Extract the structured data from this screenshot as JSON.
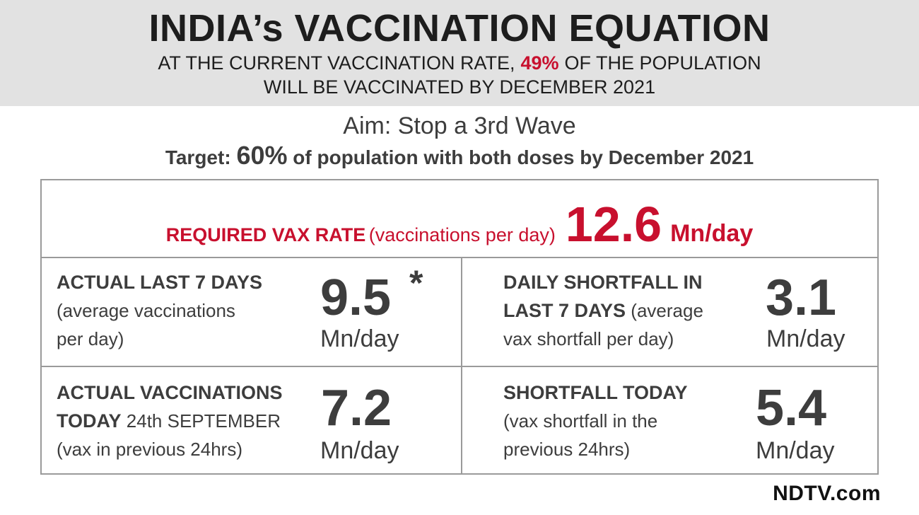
{
  "header": {
    "title": "INDIA’s VACCINATION EQUATION",
    "line1_before": "AT THE CURRENT VACCINATION RATE,",
    "line1_pct": "49%",
    "line1_after": "OF THE POPULATION",
    "line2": "WILL BE VACCINATED BY DECEMBER 2021"
  },
  "aim": "Aim: Stop a 3rd Wave",
  "target": {
    "prefix": "Target: ",
    "pct": "60%",
    "suffix": " of population with both doses by December 2021"
  },
  "required": {
    "label": "REQUIRED VAX RATE",
    "paren": "(vaccinations per day)",
    "value": "12.6",
    "unit": "Mn/day"
  },
  "cells": [
    {
      "title": "ACTUAL LAST 7 DAYS",
      "desc1": "(average vaccinations",
      "desc2": "per day)",
      "value": "9.5",
      "star": "*",
      "unit": "Mn/day"
    },
    {
      "title": "DAILY SHORTFALL IN",
      "title2": "LAST 7 DAYS",
      "desc_inline": " (average",
      "desc2": "vax shortfall per day)",
      "value": "3.1",
      "unit": "Mn/day"
    },
    {
      "title": "ACTUAL VACCINATIONS",
      "title2": "TODAY",
      "desc_inline": " 24th SEPTEMBER",
      "desc2": "(vax in previous 24hrs)",
      "value": "7.2",
      "unit": "Mn/day"
    },
    {
      "title": "SHORTFALL TODAY",
      "desc1": "(vax shortfall in the",
      "desc2": "previous 24hrs)",
      "value": "5.4",
      "unit": "Mn/day"
    }
  ],
  "logo": "NDTV.com",
  "colors": {
    "accent_red": "#c8102e",
    "header_bg": "#e2e2e2",
    "text": "#3d3d3d",
    "border": "#9a9a9a"
  }
}
